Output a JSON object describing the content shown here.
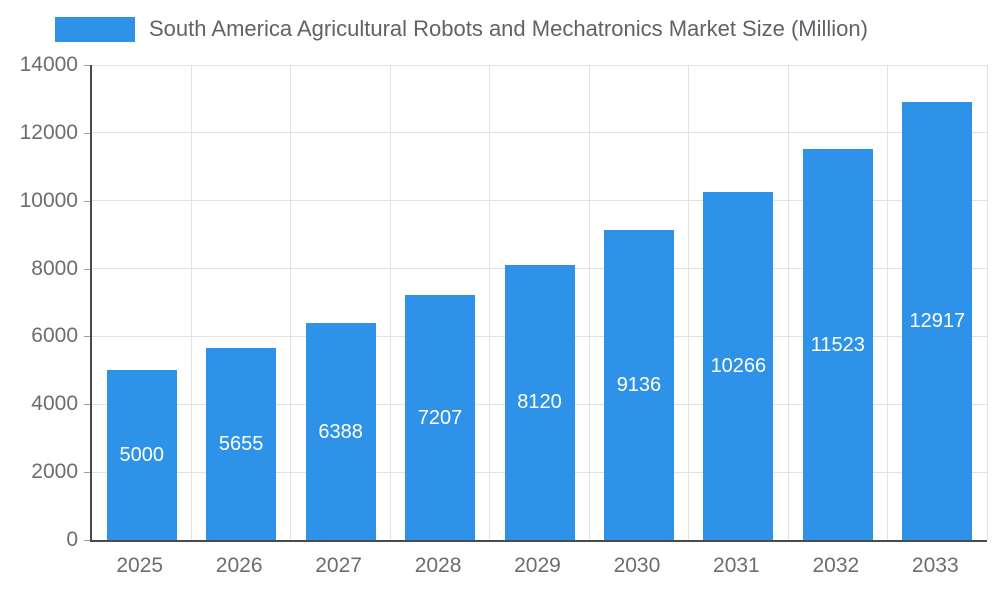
{
  "chart_data": {
    "type": "bar",
    "title": "South America Agricultural Robots and Mechatronics Market Size (Million)",
    "categories": [
      "2025",
      "2026",
      "2027",
      "2028",
      "2029",
      "2030",
      "2031",
      "2032",
      "2033"
    ],
    "values": [
      5000,
      5655,
      6388,
      7207,
      8120,
      9136,
      10266,
      11523,
      12917
    ],
    "xlabel": "",
    "ylabel": "",
    "ylim": [
      0,
      14000
    ],
    "yticks": [
      0,
      2000,
      4000,
      6000,
      8000,
      10000,
      12000,
      14000
    ],
    "grid": true,
    "legend_position": "top-left",
    "value_labels": "inside-center",
    "colors": {
      "bar": "#2e93e8",
      "value_text": "#ffffff",
      "axis_text": "#6d6d6d",
      "title_text": "#5f6368",
      "gridline": "#e2e2e2",
      "axis_line": "#4a4a4a",
      "background": "#ffffff"
    }
  }
}
